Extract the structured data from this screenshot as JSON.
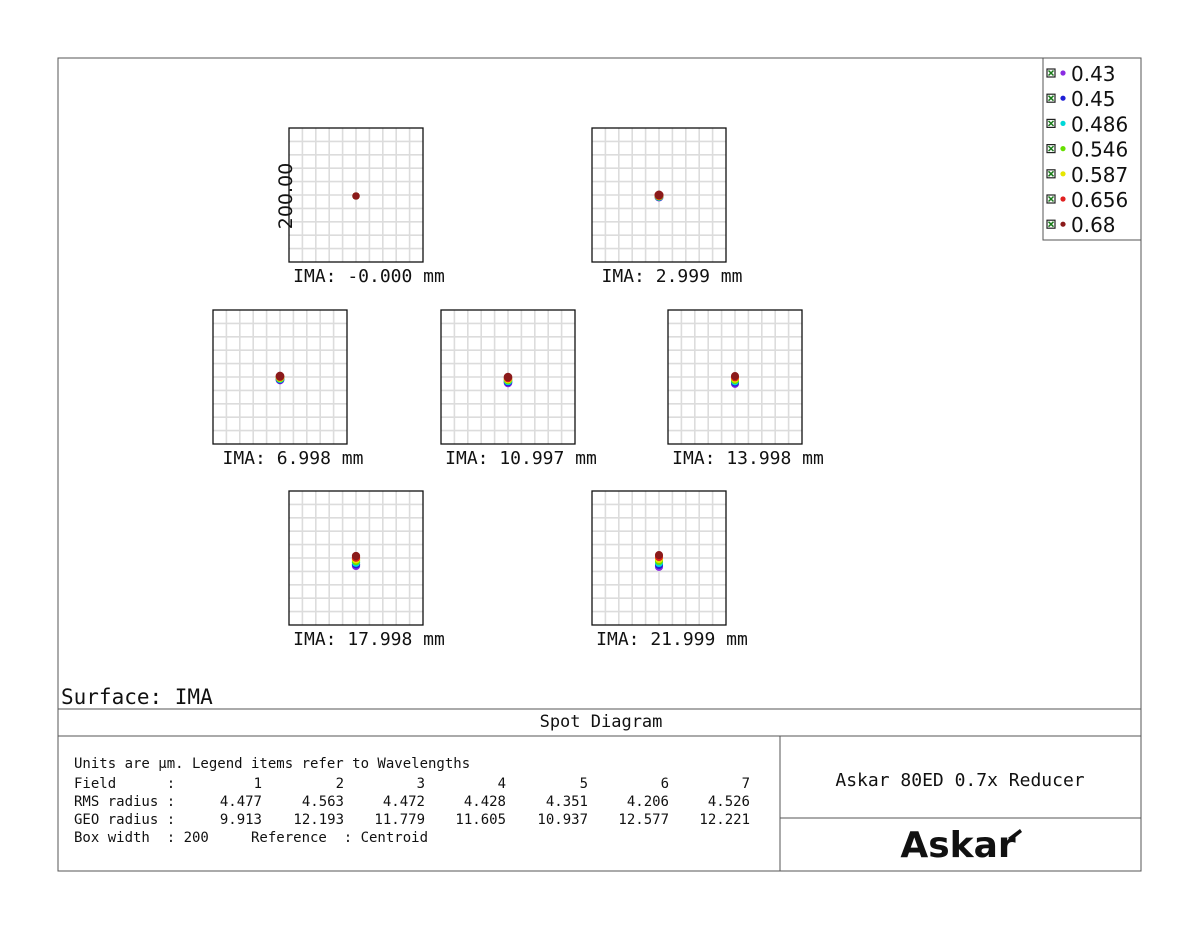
{
  "surface_label": "Surface: IMA",
  "diagram_title": "Spot Diagram",
  "legend": {
    "items": [
      {
        "label": "0.43",
        "color": "#8a2be2"
      },
      {
        "label": "0.45",
        "color": "#1f1fd6"
      },
      {
        "label": "0.486",
        "color": "#00d8d8"
      },
      {
        "label": "0.546",
        "color": "#66e000"
      },
      {
        "label": "0.587",
        "color": "#e6e600"
      },
      {
        "label": "0.656",
        "color": "#e02020"
      },
      {
        "label": "0.68",
        "color": "#8b1a1a"
      }
    ]
  },
  "info": {
    "line1": "Units are µm. Legend items refer to Wavelengths",
    "field_row": {
      "label": "Field      :",
      "values": [
        "1",
        "2",
        "3",
        "4",
        "5",
        "6",
        "7"
      ]
    },
    "rms_row": {
      "label": "RMS radius :",
      "values": [
        "4.477",
        "4.563",
        "4.472",
        "4.428",
        "4.351",
        "4.206",
        "4.526"
      ]
    },
    "geo_row": {
      "label": "GEO radius :",
      "values": [
        "9.913",
        "12.193",
        "11.779",
        "11.605",
        "10.937",
        "12.577",
        "12.221"
      ]
    },
    "last_line": "Box width  : 200     Reference  : Centroid"
  },
  "product": {
    "name": "Askar 80ED 0.7x Reducer",
    "logo_text": "Askar"
  },
  "chart_data": {
    "type": "scatter",
    "title": "Spot Diagram",
    "axis_label": "200.00",
    "box_width_um": 200,
    "units": "µm",
    "fields": [
      {
        "label": "IMA: -0.000 mm",
        "field": 1,
        "rms_um": 4.477,
        "geo_um": 9.913
      },
      {
        "label": "IMA: 2.999 mm",
        "field": 2,
        "rms_um": 4.563,
        "geo_um": 12.193
      },
      {
        "label": "IMA: 6.998 mm",
        "field": 3,
        "rms_um": 4.472,
        "geo_um": 11.779
      },
      {
        "label": "IMA: 10.997 mm",
        "field": 4,
        "rms_um": 4.428,
        "geo_um": 11.605
      },
      {
        "label": "IMA: 13.998 mm",
        "field": 5,
        "rms_um": 4.351,
        "geo_um": 10.937
      },
      {
        "label": "IMA: 17.998 mm",
        "field": 6,
        "rms_um": 4.206,
        "geo_um": 12.577
      },
      {
        "label": "IMA: 21.999 mm",
        "field": 7,
        "rms_um": 4.526,
        "geo_um": 12.221
      }
    ],
    "series": [
      "0.43",
      "0.45",
      "0.486",
      "0.546",
      "0.587",
      "0.656",
      "0.68"
    ]
  }
}
